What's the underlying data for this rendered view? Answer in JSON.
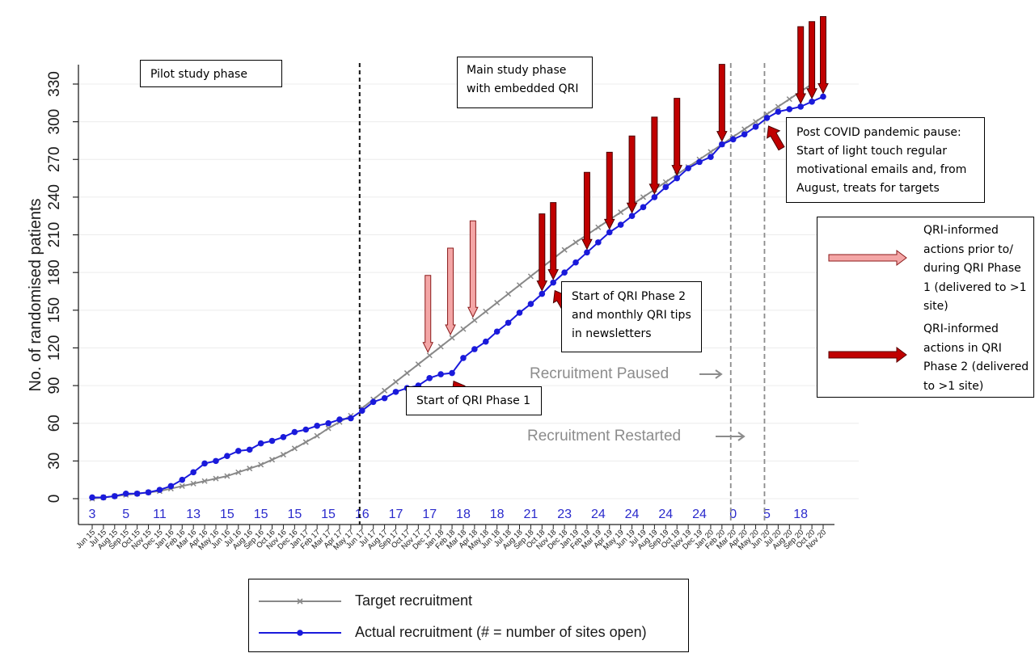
{
  "chart_data": {
    "type": "line",
    "ylabel": "No. of randomised patients",
    "xlabel": "",
    "ylim": [
      0,
      330
    ],
    "yticks": [
      0,
      30,
      60,
      90,
      120,
      150,
      180,
      210,
      240,
      270,
      300,
      330
    ],
    "grid": true,
    "x": [
      "Jun 15",
      "Jul 15",
      "Aug 15",
      "Sep 15",
      "Oct 15",
      "Nov 15",
      "Dec 15",
      "Jan 16",
      "Feb 16",
      "Mar 16",
      "Apr 16",
      "May 16",
      "Jun 16",
      "Jul 16",
      "Aug 16",
      "Sep 16",
      "Oct 16",
      "Nov 16",
      "Dec 16",
      "Jan 17",
      "Feb 17",
      "Mar 17",
      "Apr 17",
      "May 17",
      "Jun 17",
      "Jul 17",
      "Aug 17",
      "Sep 17",
      "Oct 17",
      "Nov 17",
      "Dec 17",
      "Jan 18",
      "Feb 18",
      "Mar 18",
      "Apr 18",
      "May 18",
      "Jun 18",
      "Jul 18",
      "Aug 18",
      "Sep 18",
      "Oct 18",
      "Nov 18",
      "Dec 18",
      "Jan 19",
      "Feb 19",
      "Mar 19",
      "Apr 19",
      "May 19",
      "Jun 19",
      "Jul 19",
      "Aug 19",
      "Sep 19",
      "Oct 19",
      "Nov 19",
      "Dec 19",
      "Jan 20",
      "Feb 20",
      "Mar 20",
      "Apr 20",
      "May 20",
      "Jun 20",
      "Jul 20",
      "Aug 20",
      "Sep 20",
      "Oct 20",
      "Nov 20"
    ],
    "series": [
      {
        "name": "Target recruitment",
        "color": "#888888",
        "marker": "x",
        "values": [
          0,
          1,
          2,
          3,
          4,
          5,
          6,
          8,
          10,
          12,
          14,
          16,
          18,
          21,
          24,
          27,
          31,
          35,
          40,
          45,
          50,
          56,
          61,
          66,
          null,
          null,
          null,
          null,
          null,
          null,
          null,
          null,
          null,
          null,
          null,
          null,
          null,
          null,
          null,
          null,
          null,
          null,
          null,
          null,
          null,
          null,
          null,
          null,
          null,
          null,
          null,
          null,
          null,
          null,
          null,
          null,
          null,
          null,
          null,
          null,
          null,
          null,
          null,
          null,
          null,
          null
        ]
      },
      {
        "name": "",
        "color": "#888888",
        "marker": "x",
        "values": [
          null,
          null,
          null,
          null,
          null,
          null,
          null,
          null,
          null,
          null,
          null,
          null,
          null,
          null,
          null,
          null,
          null,
          null,
          null,
          null,
          null,
          null,
          null,
          null,
          72,
          79,
          86,
          93,
          100,
          107,
          114,
          121,
          128,
          135,
          142,
          149,
          156,
          163,
          170,
          177,
          184,
          191,
          198,
          204,
          210,
          216,
          222,
          228,
          234,
          240,
          246,
          252,
          258,
          264,
          270,
          276,
          282,
          288,
          294,
          300,
          306,
          312,
          318,
          324,
          330,
          null
        ]
      },
      {
        "name": "Actual recruitment (# = number of sites open)",
        "color": "#1a1adb",
        "marker": "o",
        "values": [
          1,
          1,
          2,
          4,
          4,
          5,
          7,
          10,
          15,
          21,
          28,
          30,
          34,
          38,
          39,
          44,
          46,
          49,
          53,
          55,
          58,
          60,
          63,
          64,
          70,
          77,
          80,
          85,
          88,
          90,
          96,
          99,
          100,
          112,
          119,
          125,
          133,
          140,
          148,
          155,
          163,
          172,
          180,
          188,
          196,
          204,
          212,
          218,
          225,
          232,
          240,
          248,
          255,
          263,
          268,
          272,
          282,
          286,
          290,
          296,
          303,
          308,
          310,
          312,
          316,
          320
        ]
      }
    ],
    "sites_open": [
      "3",
      "5",
      "11",
      "13",
      "15",
      "15",
      "15",
      "15",
      "16",
      "17",
      "17",
      "18",
      "18",
      "21",
      "23",
      "24",
      "24",
      "24",
      "24",
      "0",
      "5",
      "18"
    ],
    "vlines": [
      {
        "at": "Jun 17",
        "style": "black-dashed"
      },
      {
        "at": "Mar 20",
        "style": "gray-dashed"
      },
      {
        "at": "Jun 20",
        "style": "gray-dashed"
      }
    ],
    "arrows_light": [
      "Dec 17",
      "Feb 18",
      "Apr 18"
    ],
    "arrows_dark_down": [
      "Oct 18",
      "Nov 18",
      "Feb 19",
      "Apr 19",
      "Jun 19",
      "Aug 19",
      "Oct 19",
      "Feb 20",
      "Sep 20",
      "Oct 20",
      "Nov 20"
    ],
    "arrows_dark_up": [
      "Feb 18",
      "Nov 18",
      "Jun 20"
    ]
  },
  "annotations": {
    "pilot": "Pilot study phase",
    "main_1": "Main study phase",
    "main_2": "with embedded QRI",
    "covid_1": "Post COVID pandemic pause:",
    "covid_2": "Start of light touch regular",
    "covid_3": "motivational emails and, from",
    "covid_4": "August, treats for targets",
    "phase2_1": "Start of QRI Phase 2",
    "phase2_2": "and monthly QRI tips",
    "phase2_3": "in newsletters",
    "phase1": "Start of QRI Phase 1",
    "paused": "Recruitment Paused",
    "restarted": "Recruitment Restarted"
  },
  "arrow_key": {
    "light_1": "QRI-informed",
    "light_2": "actions prior to/",
    "light_3": "during QRI Phase",
    "light_4": "1 (delivered to >1",
    "light_5": "site)",
    "dark_1": "QRI-informed",
    "dark_2": "actions in QRI",
    "dark_3": "Phase 2 (delivered",
    "dark_4": "to >1 site)"
  },
  "legend": {
    "target": "Target recruitment",
    "actual": "Actual recruitment (# = number of sites open)"
  },
  "colors": {
    "target": "#888888",
    "actual": "#1a1adb",
    "arrow_light": "#f4a6a6",
    "arrow_dark": "#c00000",
    "sites_text": "#2a2acc"
  }
}
